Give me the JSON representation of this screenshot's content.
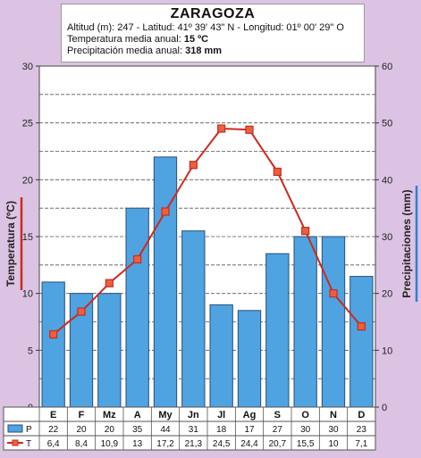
{
  "header": {
    "city": "ZARAGOZA",
    "coords": "Altitud (m): 247 - Latitud: 41º 39' 43\" N - Longitud: 01º 00' 29\" O",
    "temp_label": "Temperatura media anual:",
    "temp_value": "15 ºC",
    "precip_label": "Precipitación media anual:",
    "precip_value": "318 mm"
  },
  "colors": {
    "bar_fill": "#4fa3e0",
    "bar_stroke": "#2a4f7a",
    "line": "#cc2a1e",
    "marker": "#e9613f",
    "plot_bg": "#ffffff",
    "page_bg": "#dcc3e3"
  },
  "chart_data": {
    "type": "bar",
    "categories": [
      "E",
      "F",
      "Mz",
      "A",
      "My",
      "Jn",
      "Jl",
      "Ag",
      "S",
      "O",
      "N",
      "D"
    ],
    "series": [
      {
        "name": "P",
        "type": "bar",
        "axis": "right",
        "values": [
          22,
          20,
          20,
          35,
          44,
          31,
          18,
          17,
          27,
          30,
          30,
          23
        ]
      },
      {
        "name": "T",
        "type": "line",
        "axis": "left",
        "values": [
          6.4,
          8.4,
          10.9,
          13,
          17.2,
          21.3,
          24.5,
          24.4,
          20.7,
          15.5,
          10,
          7.1
        ]
      }
    ],
    "ylabel_left": "Temperatura (ºC)",
    "ylabel_right": "Precipitaciones (mm)",
    "ylim_left": [
      0,
      30
    ],
    "ylim_right": [
      0,
      60
    ],
    "yticks_left": [
      0,
      5,
      10,
      15,
      20,
      25,
      30
    ],
    "yticks_right": [
      0,
      10,
      20,
      30,
      40,
      50,
      60
    ],
    "table_rows": [
      {
        "key": "P",
        "values": [
          "22",
          "20",
          "20",
          "35",
          "44",
          "31",
          "18",
          "17",
          "27",
          "30",
          "30",
          "23"
        ]
      },
      {
        "key": "T",
        "values": [
          "6,4",
          "8,4",
          "10,9",
          "13",
          "17,2",
          "21,3",
          "24,5",
          "24,4",
          "20,7",
          "15,5",
          "10",
          "7,1"
        ]
      }
    ]
  }
}
